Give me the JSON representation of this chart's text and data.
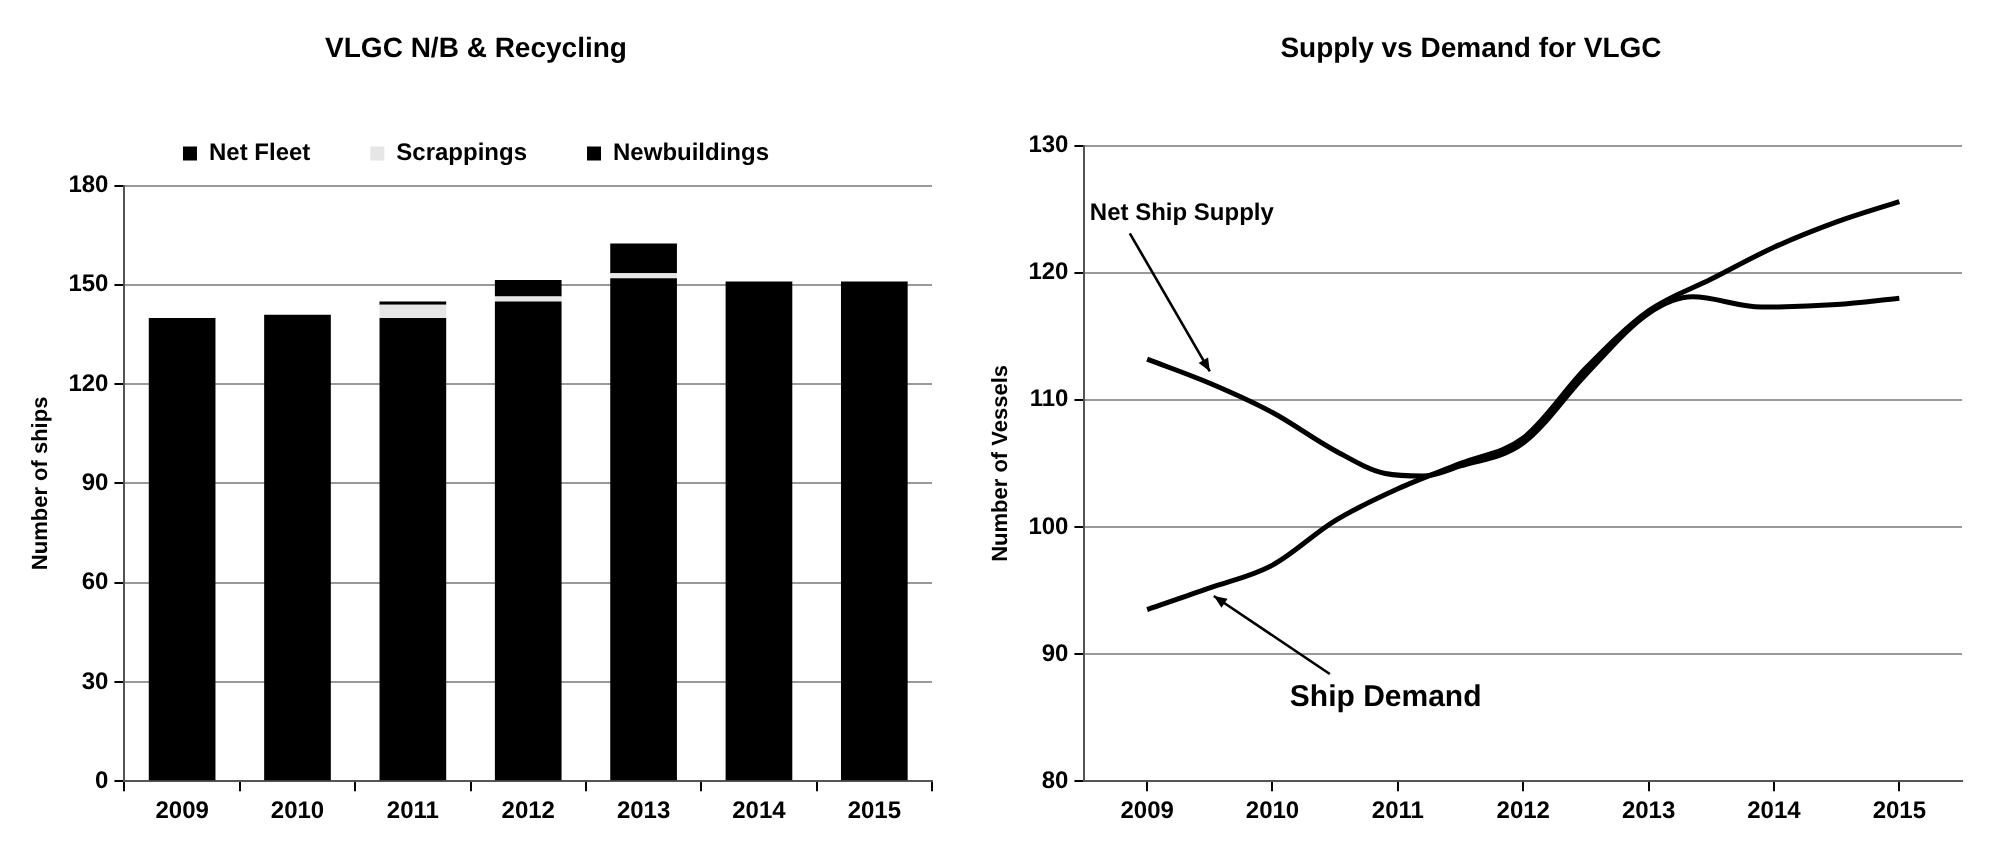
{
  "chart_data": [
    {
      "type": "bar",
      "title": "VLGC N/B & Recycling",
      "ylabel": "Number of ships",
      "categories": [
        "2009",
        "2010",
        "2011",
        "2012",
        "2013",
        "2014",
        "2015"
      ],
      "stacked": true,
      "legend": "top",
      "grid": "y",
      "ylim": [
        0,
        180
      ],
      "yticks": [
        0,
        30,
        60,
        90,
        120,
        150,
        180
      ],
      "series": [
        {
          "name": "Net Fleet",
          "color": "#000000",
          "values": [
            140,
            141,
            140,
            145,
            152,
            151,
            151
          ]
        },
        {
          "name": "Scrappings",
          "color": "#e6e6e6",
          "values": [
            0,
            0,
            4,
            1.5,
            1.5,
            0,
            0
          ]
        },
        {
          "name": "Newbuildings",
          "color": "#000000",
          "values": [
            0,
            0,
            1,
            5,
            9,
            0,
            0
          ]
        }
      ]
    },
    {
      "type": "line",
      "title": "Supply vs Demand for VLGC",
      "ylabel": "Number of Vessels",
      "xlim": [
        2008.5,
        2015.5
      ],
      "xticks": [
        2009,
        2010,
        2011,
        2012,
        2013,
        2014,
        2015
      ],
      "ylim": [
        80,
        130
      ],
      "yticks": [
        80,
        90,
        100,
        110,
        120,
        130
      ],
      "grid": "y",
      "legend": false,
      "marker": "none",
      "series": [
        {
          "name": "Net Ship Supply",
          "color": "#000000",
          "x": [
            2009,
            2009.5,
            2010,
            2010.5,
            2010.9,
            2011.2,
            2011.5,
            2012,
            2012.5,
            2013,
            2013.35,
            2013.9,
            2014.5,
            2015
          ],
          "values": [
            113.2,
            111.3,
            109,
            106,
            104.2,
            104,
            104.8,
            106.6,
            112,
            116.8,
            118.1,
            117.3,
            117.5,
            118
          ]
        },
        {
          "name": "Ship Demand",
          "color": "#000000",
          "x": [
            2009,
            2009.5,
            2010,
            2010.5,
            2011,
            2011.5,
            2012,
            2012.5,
            2013,
            2013.5,
            2014,
            2014.5,
            2015
          ],
          "values": [
            93.5,
            95.2,
            97,
            100.5,
            103,
            105,
            107,
            112.5,
            117,
            119.5,
            122,
            124,
            125.6
          ]
        }
      ]
    }
  ]
}
